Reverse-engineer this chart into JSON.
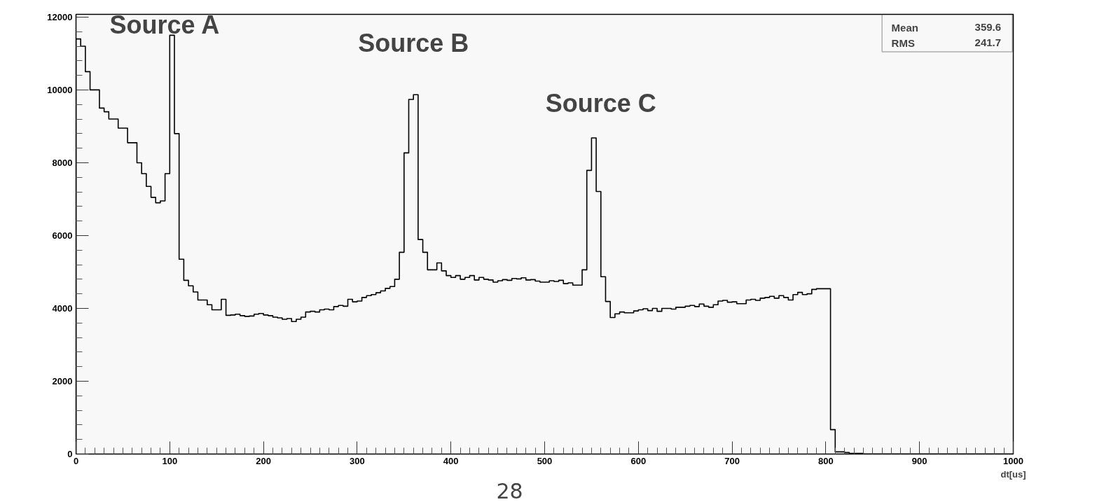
{
  "chart_data": {
    "type": "histogram",
    "xlabel": "dt[us]",
    "color": "#000000",
    "bins": [
      0,
      5,
      10,
      15,
      20,
      25,
      30,
      35,
      40,
      45,
      50,
      55,
      60,
      65,
      70,
      75,
      80,
      85,
      90,
      95,
      100,
      105,
      110,
      115,
      120,
      125,
      130,
      135,
      140,
      145,
      150,
      155,
      160,
      165,
      170,
      175,
      180,
      185,
      190,
      195,
      200,
      205,
      210,
      215,
      220,
      225,
      230,
      235,
      240,
      245,
      250,
      255,
      260,
      265,
      270,
      275,
      280,
      285,
      290,
      295,
      300,
      305,
      310,
      315,
      320,
      325,
      330,
      335,
      340,
      345,
      350,
      355,
      360,
      365,
      370,
      375,
      380,
      385,
      390,
      395,
      400,
      405,
      410,
      415,
      420,
      425,
      430,
      435,
      440,
      445,
      450,
      455,
      460,
      465,
      470,
      475,
      480,
      485,
      490,
      495,
      500,
      505,
      510,
      515,
      520,
      525,
      530,
      535,
      540,
      545,
      550,
      555,
      560,
      565,
      570,
      575,
      580,
      585,
      590,
      595,
      600,
      605,
      610,
      615,
      620,
      625,
      630,
      635,
      640,
      645,
      650,
      655,
      660,
      665,
      670,
      675,
      680,
      685,
      690,
      695,
      700,
      705,
      710,
      715,
      720,
      725,
      730,
      735,
      740,
      745,
      750,
      755,
      760,
      765,
      770,
      775,
      780,
      785,
      790,
      795,
      800,
      805,
      810,
      815,
      820,
      825,
      830,
      835,
      840,
      845,
      850,
      855,
      860,
      865,
      870,
      875,
      880,
      885,
      890,
      895,
      900,
      905,
      910,
      915,
      920,
      925,
      930,
      935,
      940,
      945,
      950,
      955,
      960,
      965,
      970,
      975,
      980,
      985,
      990,
      995,
      1000
    ],
    "values": [
      11400,
      11200,
      10500,
      10000,
      10000,
      9500,
      9400,
      9200,
      9200,
      8950,
      8950,
      8550,
      8550,
      8000,
      7700,
      7350,
      7050,
      6900,
      6950,
      7700,
      11500,
      8800,
      5350,
      4770,
      4620,
      4450,
      4230,
      4230,
      4100,
      3960,
      3960,
      4250,
      3810,
      3820,
      3840,
      3800,
      3780,
      3790,
      3840,
      3860,
      3820,
      3800,
      3760,
      3740,
      3700,
      3720,
      3640,
      3700,
      3760,
      3900,
      3920,
      3900,
      3960,
      3980,
      3960,
      4050,
      4080,
      4060,
      4250,
      4180,
      4200,
      4300,
      4350,
      4380,
      4430,
      4480,
      4550,
      4600,
      4800,
      5540,
      8270,
      9740,
      9870,
      5890,
      5540,
      5060,
      5060,
      5250,
      5030,
      4900,
      4850,
      4900,
      4800,
      4850,
      4900,
      4780,
      4850,
      4800,
      4780,
      4720,
      4760,
      4790,
      4770,
      4820,
      4810,
      4840,
      4780,
      4790,
      4750,
      4720,
      4720,
      4760,
      4740,
      4770,
      4680,
      4700,
      4640,
      4640,
      5060,
      7790,
      8680,
      7210,
      4870,
      4190,
      3750,
      3850,
      3900,
      3880,
      3880,
      3930,
      3960,
      3990,
      3940,
      4000,
      3920,
      4000,
      4000,
      3980,
      4030,
      4030,
      4060,
      4080,
      4050,
      4120,
      4060,
      4030,
      4100,
      4200,
      4220,
      4170,
      4180,
      4130,
      4130,
      4230,
      4250,
      4220,
      4280,
      4300,
      4330,
      4280,
      4350,
      4300,
      4230,
      4380,
      4440,
      4380,
      4400,
      4520,
      4540,
      4540,
      4540,
      670,
      60,
      60,
      40,
      20,
      20,
      20,
      0,
      0,
      0,
      0,
      0,
      0,
      0,
      0,
      0,
      0,
      0,
      0,
      0,
      0,
      0,
      0,
      0,
      0,
      0,
      0,
      0,
      0,
      0,
      0,
      0,
      0,
      0,
      0,
      0,
      0,
      0,
      0
    ],
    "xlim": [
      0,
      1000
    ],
    "xticks": [
      0,
      100,
      200,
      300,
      400,
      500,
      600,
      700,
      800,
      900,
      1000
    ],
    "ylim": [
      0,
      12075
    ],
    "yticks": [
      0,
      2000,
      4000,
      6000,
      8000,
      10000,
      12000
    ],
    "grid": false,
    "annotations": [
      "Source A",
      "Source B",
      "Source C",
      "Mean",
      "359.6",
      "RMS",
      "241.7",
      "28"
    ]
  }
}
